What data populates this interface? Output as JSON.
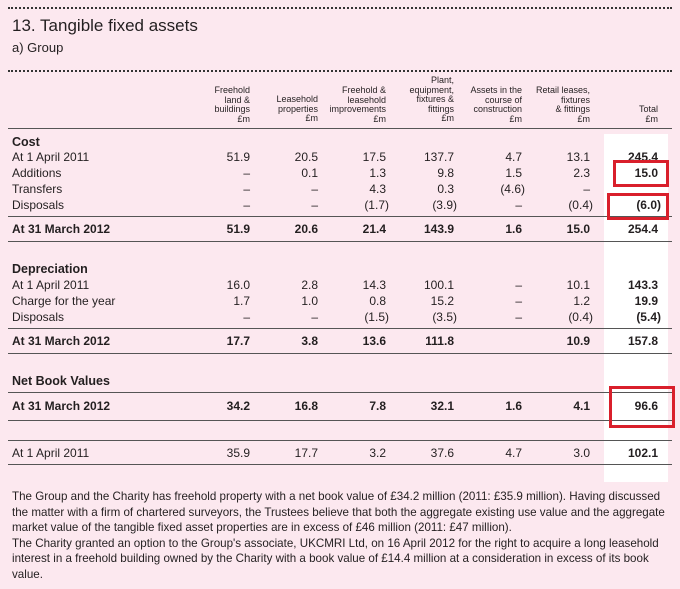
{
  "title": "13. Tangible fixed assets",
  "subtitle": "a) Group",
  "columns": [
    {
      "key": "freehold",
      "lines": [
        "Freehold",
        "land &",
        "buildings",
        "£m"
      ]
    },
    {
      "key": "leasehold",
      "lines": [
        "Leasehold",
        "properties",
        "£m"
      ]
    },
    {
      "key": "freehold_leasehold_impr",
      "lines": [
        "Freehold &",
        "leasehold",
        "improvements",
        "£m"
      ]
    },
    {
      "key": "plant",
      "lines": [
        "Plant,",
        "equipment,",
        "fixtures &",
        "fittings",
        "£m"
      ]
    },
    {
      "key": "construction",
      "lines": [
        "Assets in the",
        "course of",
        "construction",
        "£m"
      ]
    },
    {
      "key": "retail",
      "lines": [
        "Retail leases,",
        "fixtures",
        "& fittings",
        "£m"
      ]
    },
    {
      "key": "total",
      "lines": [
        "Total",
        "£m"
      ]
    }
  ],
  "cost": {
    "heading": "Cost",
    "rows": [
      {
        "label": "At 1 April 2011",
        "values": [
          "51.9",
          "20.5",
          "17.5",
          "137.7",
          "4.7",
          "13.1",
          "245.4"
        ]
      },
      {
        "label": "Additions",
        "values": [
          "–",
          "0.1",
          "1.3",
          "9.8",
          "1.5",
          "2.3",
          "15.0"
        ]
      },
      {
        "label": "Transfers",
        "values": [
          "–",
          "–",
          "4.3",
          "0.3",
          "(4.6)",
          "–",
          ""
        ]
      },
      {
        "label": "Disposals",
        "values": [
          "–",
          "–",
          "(1.7)",
          "(3.9)",
          "–",
          "(0.4)",
          "(6.0)"
        ]
      }
    ],
    "total": {
      "label": "At 31 March 2012",
      "values": [
        "51.9",
        "20.6",
        "21.4",
        "143.9",
        "1.6",
        "15.0",
        "254.4"
      ]
    }
  },
  "depreciation": {
    "heading": "Depreciation",
    "rows": [
      {
        "label": "At 1 April 2011",
        "values": [
          "16.0",
          "2.8",
          "14.3",
          "100.1",
          "–",
          "10.1",
          "143.3"
        ]
      },
      {
        "label": "Charge for the year",
        "values": [
          "1.7",
          "1.0",
          "0.8",
          "15.2",
          "–",
          "1.2",
          "19.9"
        ]
      },
      {
        "label": "Disposals",
        "values": [
          "–",
          "–",
          "(1.5)",
          "(3.5)",
          "–",
          "(0.4)",
          "(5.4)"
        ]
      }
    ],
    "total": {
      "label": "At 31 March 2012",
      "values": [
        "17.7",
        "3.8",
        "13.6",
        "111.8",
        "",
        "10.9",
        "157.8"
      ]
    }
  },
  "nbv": {
    "heading": "Net Book Values",
    "row": {
      "label": "At 31 March 2012",
      "values": [
        "34.2",
        "16.8",
        "7.8",
        "32.1",
        "1.6",
        "4.1",
        "96.6"
      ]
    },
    "prior": {
      "label": "At 1 April 2011",
      "values": [
        "35.9",
        "17.7",
        "3.2",
        "37.6",
        "4.7",
        "3.0",
        "102.1"
      ]
    }
  },
  "note": [
    "The Group and the Charity has freehold property with a net book value of £34.2 million (2011: £35.9 million). Having discussed the matter with a firm of chartered surveyors, the Trustees believe that both the aggregate existing use value and the aggregate market value of the tangible fixed asset properties are in excess of £46 million (2011: £47 million).",
    "The Charity granted an option to the Group's associate, UKCMRI Ltd, on 16 April 2012 for the right to acquire a long leasehold interest in a freehold building owned by the Charity with a book value of £14.4 million at a consideration in excess of its book value."
  ],
  "colors": {
    "background": "#fce8ef",
    "highlight": "#d91f2b"
  }
}
